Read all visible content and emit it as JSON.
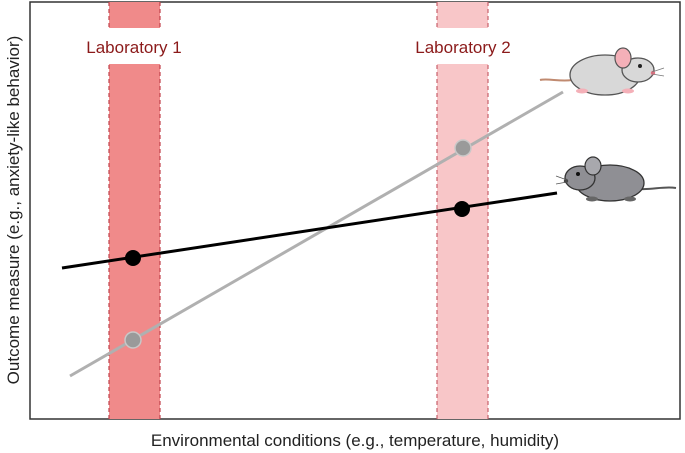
{
  "labels": {
    "lab1": "Laboratory 1",
    "lab2": "Laboratory 2",
    "x_axis": "Environmental conditions (e.g., temperature, humidity)",
    "y_axis": "Outcome measure (e.g., anxiety-like behavior)"
  },
  "colors": {
    "lab1_band": "#f08a8a",
    "lab1_band_edge": "#c0404a",
    "lab2_band": "#f8c6c8",
    "lab2_band_edge": "#c8606a",
    "lab_text": "#8b1a1a",
    "strain_a_line": "#b0b0b0",
    "strain_a_point": "#9a9a9a",
    "strain_b_line": "#000000",
    "strain_b_point": "#000000",
    "mouse_light": "#d4d4d4",
    "mouse_dark": "#8f8f94"
  },
  "icons": {
    "mouse_top": "mouse-white-icon",
    "mouse_bottom": "mouse-gray-icon"
  }
}
